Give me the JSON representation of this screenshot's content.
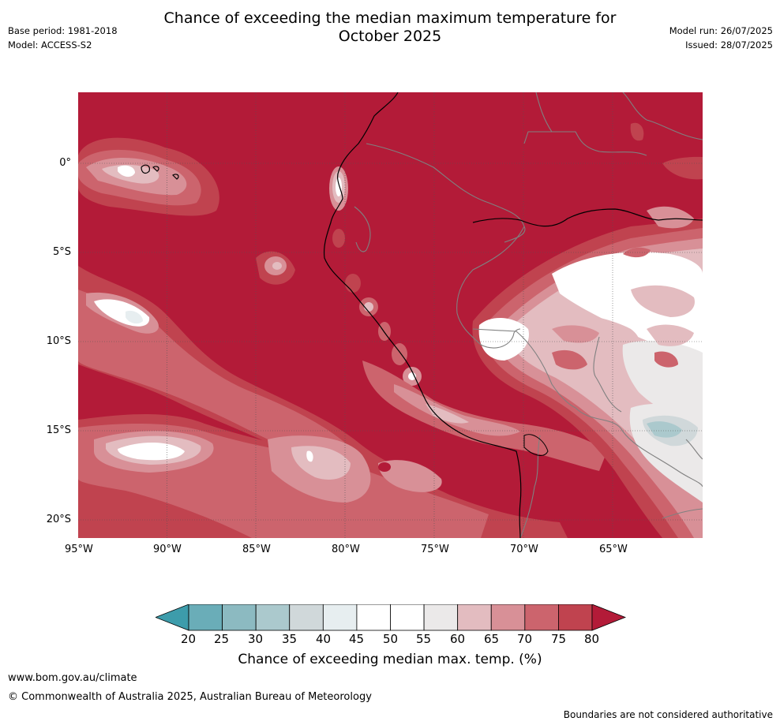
{
  "title": {
    "line1": "Chance of exceeding the median maximum temperature for",
    "line2": "October 2025"
  },
  "meta": {
    "base_period": "Base period: 1981-2018",
    "model": "Model: ACCESS-S2",
    "model_run": "Model run: 26/07/2025",
    "issued": "Issued: 28/07/2025"
  },
  "map": {
    "lon_ticks": [
      "95°W",
      "90°W",
      "85°W",
      "80°W",
      "75°W",
      "70°W",
      "65°W"
    ],
    "lat_ticks": [
      "0°",
      "5°S",
      "10°S",
      "15°S",
      "20°S"
    ],
    "dominant_class": "80+",
    "colors": {
      "80plus": "#b31b38",
      "75_80": "#c0434f",
      "70_75": "#cc646d",
      "65_70": "#d89097",
      "60_65": "#e3bcc0",
      "55_60": "#ebe9e9",
      "45_55": "#ffffff",
      "40_45": "#e7eef0",
      "35_40": "#d0d8da",
      "30_35": "#abc9cd",
      "25_30": "#8cbac1",
      "20_25": "#6aadb8",
      "below20": "#3d9cab",
      "coast": "#000000",
      "border": "#808080"
    }
  },
  "colorbar": {
    "ticks": [
      "20",
      "25",
      "30",
      "35",
      "40",
      "45",
      "50",
      "55",
      "60",
      "65",
      "70",
      "75",
      "80"
    ],
    "colors": [
      "#6aadb8",
      "#8cbac1",
      "#abc9cd",
      "#d0d8da",
      "#e7eef0",
      "#ffffff",
      "#ffffff",
      "#ebe9e9",
      "#e3bcc0",
      "#d89097",
      "#cc646d",
      "#c0434f"
    ],
    "low_extend_color": "#3d9cab",
    "high_extend_color": "#b31b38",
    "label": "Chance of exceeding median max. temp. (%)"
  },
  "footer": {
    "url": "www.bom.gov.au/climate",
    "copyright": "© Commonwealth of Australia 2025, Australian Bureau of Meteorology",
    "disclaimer": "Boundaries are not considered authoritative"
  }
}
